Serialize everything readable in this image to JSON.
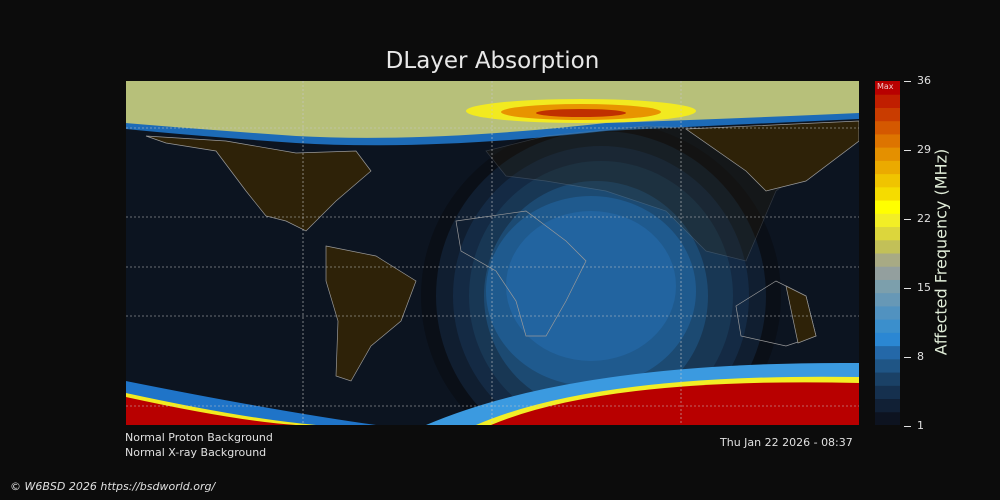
{
  "title": "DLayer Absorption",
  "colorbar": {
    "label": "Affected Frequency (MHz)",
    "max_label": "Max",
    "ticks": [
      "36",
      "29",
      "22",
      "15",
      "8",
      "1"
    ],
    "range": [
      1,
      36
    ],
    "colors": [
      "#0d1320",
      "#112035",
      "#15304e",
      "#1a4166",
      "#1f5585",
      "#2468a8",
      "#2b87d3",
      "#3b8fcc",
      "#5192c0",
      "#6798b6",
      "#7c9fac",
      "#939f9e",
      "#a8aa84",
      "#c2c058",
      "#dcd63c",
      "#f2ee26",
      "#ffff00",
      "#f5dc00",
      "#f0c400",
      "#ebaa00",
      "#e49000",
      "#dd7400",
      "#d45800",
      "#c93c00",
      "#c01e00",
      "#b80000"
    ]
  },
  "status": {
    "proton": "Normal Proton Background",
    "xray": "Normal X-ray Background",
    "timestamp": "Thu Jan 22 2026 - 08:37"
  },
  "footer": "© W6BSD 2026 https://bsdworld.org/"
}
